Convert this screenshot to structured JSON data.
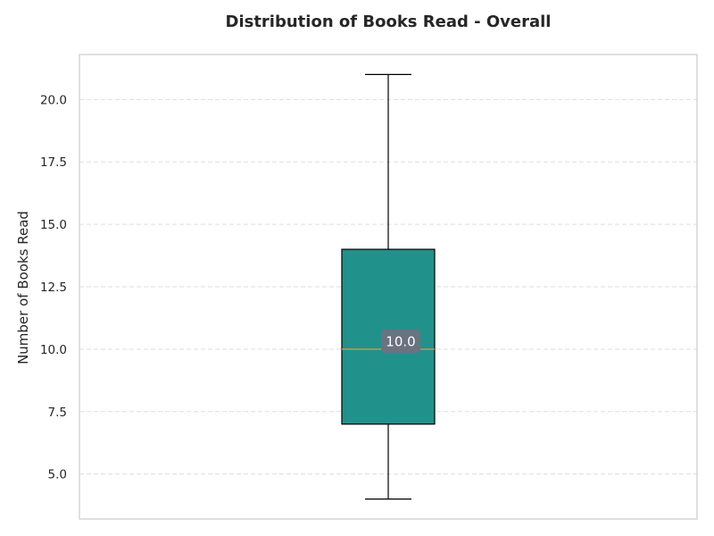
{
  "chart_data": {
    "type": "box",
    "title": "Distribution of Books Read - Overall",
    "xlabel": "",
    "ylabel": "Number of Books Read",
    "ylim": [
      3.2,
      21.8
    ],
    "yticks": [
      5.0,
      7.5,
      10.0,
      12.5,
      15.0,
      17.5,
      20.0
    ],
    "ytick_labels": [
      "5.0",
      "7.5",
      "10.0",
      "12.5",
      "15.0",
      "17.5",
      "20.0"
    ],
    "grid": "horizontal dashed",
    "box": {
      "whisker_low": 4.0,
      "q1": 7.0,
      "median": 10.0,
      "q3": 14.0,
      "whisker_high": 21.0,
      "median_label": "10.0"
    },
    "colors": {
      "box_fill": "#21918c",
      "median_line": "#d4a04c",
      "label_bg": "#6b7280",
      "grid": "#dddddd",
      "frame": "#cccccc"
    }
  }
}
